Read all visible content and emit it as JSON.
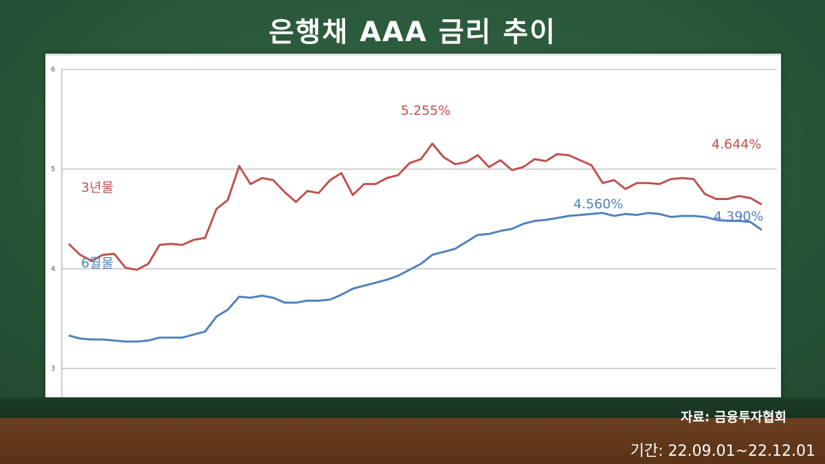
{
  "title": "은행채 AAA 금리 추이",
  "source": "자료: 금융투자협회",
  "period": "기간: 22.09.01~22.12.01",
  "colors": {
    "series_3y": "#c0504d",
    "series_6m": "#4f81bd",
    "board": "#2b5a3a"
  },
  "chart_data": {
    "type": "line",
    "ylim": [
      2,
      6
    ],
    "yticks": [
      "6",
      "5",
      "4",
      "3",
      "2"
    ],
    "grid": true,
    "series": [
      {
        "name": "3년물",
        "color": "#c0504d",
        "values": [
          4.25,
          4.14,
          4.08,
          4.14,
          4.15,
          4.01,
          3.99,
          4.05,
          4.24,
          4.25,
          4.24,
          4.29,
          4.31,
          4.6,
          4.69,
          5.03,
          4.85,
          4.91,
          4.89,
          4.77,
          4.67,
          4.78,
          4.76,
          4.89,
          4.96,
          4.74,
          4.85,
          4.85,
          4.91,
          4.94,
          5.06,
          5.1,
          5.255,
          5.12,
          5.05,
          5.07,
          5.14,
          5.02,
          5.09,
          4.99,
          5.02,
          5.1,
          5.08,
          5.15,
          5.14,
          5.09,
          5.04,
          4.86,
          4.89,
          4.8,
          4.86,
          4.86,
          4.85,
          4.9,
          4.91,
          4.9,
          4.75,
          4.7,
          4.7,
          4.73,
          4.71,
          4.644
        ]
      },
      {
        "name": "6월물",
        "color": "#4f81bd",
        "values": [
          3.33,
          3.3,
          3.29,
          3.29,
          3.28,
          3.27,
          3.27,
          3.28,
          3.31,
          3.31,
          3.31,
          3.34,
          3.37,
          3.52,
          3.59,
          3.72,
          3.71,
          3.73,
          3.71,
          3.66,
          3.66,
          3.68,
          3.68,
          3.69,
          3.74,
          3.8,
          3.83,
          3.86,
          3.89,
          3.93,
          3.99,
          4.05,
          4.14,
          4.17,
          4.2,
          4.27,
          4.34,
          4.35,
          4.38,
          4.4,
          4.45,
          4.48,
          4.49,
          4.51,
          4.53,
          4.54,
          4.55,
          4.56,
          4.53,
          4.55,
          4.54,
          4.56,
          4.55,
          4.52,
          4.53,
          4.53,
          4.52,
          4.49,
          4.48,
          4.48,
          4.47,
          4.39
        ]
      }
    ],
    "annotations": {
      "label_3y": "3년물",
      "label_6m": "6월물",
      "peak_3y": "5.255%",
      "end_3y": "4.644%",
      "peak_6m": "4.560%",
      "end_6m": "4.390%"
    }
  }
}
